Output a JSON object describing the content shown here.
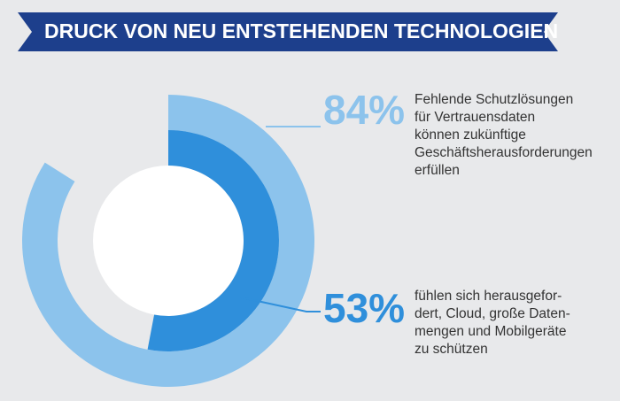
{
  "chart_data": {
    "type": "radial",
    "title": "DRUCK VON NEU ENTSTEHENDEN TECHNOLOGIEN",
    "values": [
      84,
      53
    ],
    "value_labels": [
      "84%",
      "53%"
    ],
    "labels": [
      [
        "Fehlende Schutzlösungen",
        "für Vertrauensdaten",
        "können zukünftige",
        "Geschäftsherausforderungen",
        "erfüllen"
      ],
      [
        "fühlen sich herausgefor-",
        "dert, Cloud, große Daten-",
        "mengen und Mobilgeräte",
        "zu schützen"
      ]
    ],
    "colors": [
      "#8cc3ec",
      "#2f8fdb"
    ],
    "ylim": [
      0,
      100
    ]
  }
}
